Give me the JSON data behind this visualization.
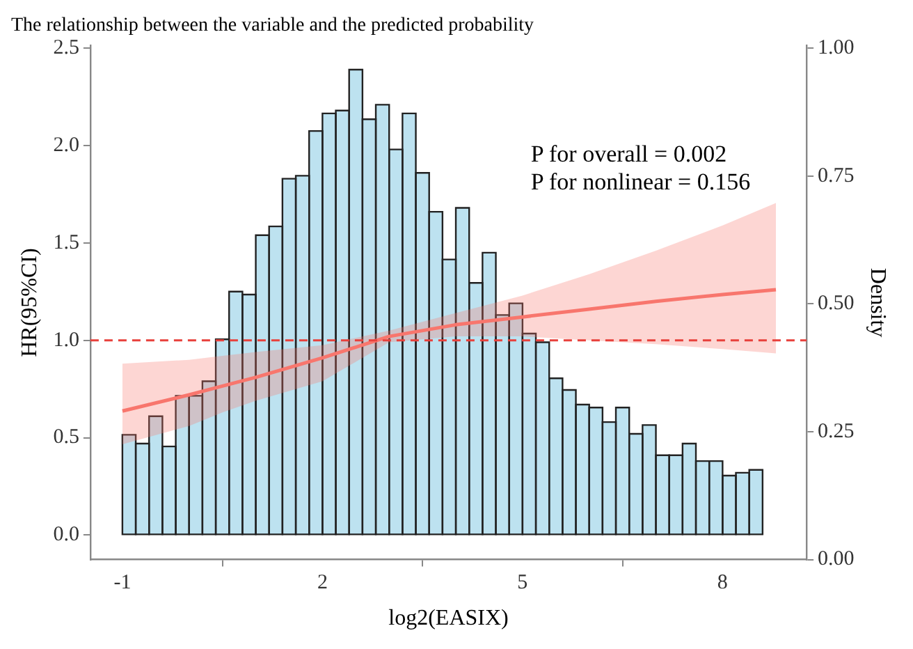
{
  "chart_data": {
    "type": "histogram",
    "title": "The relationship between the variable and the predicted probability",
    "xlabel": "log2(EASIX)",
    "ylabel": "HR(95%CI)",
    "y2label": "Density",
    "annotations": [
      "P for overall = 0.002",
      "P for nonlinear = 0.156"
    ],
    "xlim": [
      -1.48,
      9.26
    ],
    "xticks": [
      -1,
      2,
      5,
      8
    ],
    "ylim": [
      -0.126,
      2.513
    ],
    "yticks": [
      {
        "value": 0,
        "label": "0.0"
      },
      {
        "value": 0.5,
        "label": "0.5"
      },
      {
        "value": 1,
        "label": "1.0"
      },
      {
        "value": 1.5,
        "label": "1.5"
      },
      {
        "value": 2,
        "label": "2.0"
      },
      {
        "value": 2.5,
        "label": "2.5"
      }
    ],
    "y2lim": [
      0,
      1.005
    ],
    "y2ticks": [
      {
        "value": 0,
        "label": "0.00"
      },
      {
        "value": 0.25,
        "label": "0.25"
      },
      {
        "value": 0.5,
        "label": "0.50"
      },
      {
        "value": 0.75,
        "label": "0.75"
      },
      {
        "value": 1,
        "label": "1.00"
      }
    ],
    "grid": false,
    "legend": false,
    "ref_lines": [
      {
        "axis": "y",
        "value": 1,
        "color": "#e8413c",
        "line_style": "dashed"
      }
    ],
    "series": [
      {
        "color": "#bde2f0",
        "bins": [
          -1,
          -0.8,
          -0.6,
          -0.4,
          -0.2,
          0,
          0.2,
          0.4,
          0.6,
          0.8,
          1,
          1.2,
          1.4,
          1.6,
          1.8,
          2,
          2.2,
          2.4,
          2.6,
          2.8,
          3,
          3.2,
          3.4,
          3.6,
          3.8,
          4,
          4.2,
          4.4,
          4.6,
          4.8,
          5,
          5.2,
          5.4,
          5.6,
          5.8,
          6,
          6.2,
          6.4,
          6.6,
          6.8,
          7,
          7.2,
          7.4,
          7.6,
          7.8,
          8,
          8.2,
          8.4,
          8.6
        ],
        "values": [
          0.515,
          0.47,
          0.61,
          0.455,
          0.715,
          0.715,
          0.79,
          1.005,
          1.25,
          1.235,
          1.54,
          1.585,
          1.83,
          1.845,
          2.075,
          2.165,
          2.18,
          2.39,
          2.135,
          2.21,
          1.98,
          2.165,
          1.86,
          1.66,
          1.415,
          1.68,
          1.295,
          1.45,
          1.13,
          1.19,
          1.035,
          0.99,
          0.805,
          0.745,
          0.67,
          0.655,
          0.58,
          0.655,
          0.52,
          0.565,
          0.41,
          0.41,
          0.47,
          0.38,
          0.38,
          0.305,
          0.32,
          0.335
        ]
      },
      {
        "type": "line",
        "color": "#f8766d",
        "x": [
          -1,
          0,
          0.5,
          1,
          2,
          3,
          4,
          5,
          6,
          7,
          8,
          8.8
        ],
        "values": [
          0.637,
          0.72,
          0.765,
          0.81,
          0.91,
          1.02,
          1.08,
          1.12,
          1.16,
          1.2,
          1.235,
          1.26
        ],
        "lower": [
          0.466,
          0.56,
          0.63,
          0.69,
          0.79,
          0.99,
          1.02,
          1.02,
          1.0,
          0.98,
          0.955,
          0.933
        ],
        "upper": [
          0.88,
          0.9,
          0.92,
          0.94,
          0.975,
          1.05,
          1.14,
          1.23,
          1.34,
          1.46,
          1.59,
          1.705
        ]
      }
    ]
  }
}
